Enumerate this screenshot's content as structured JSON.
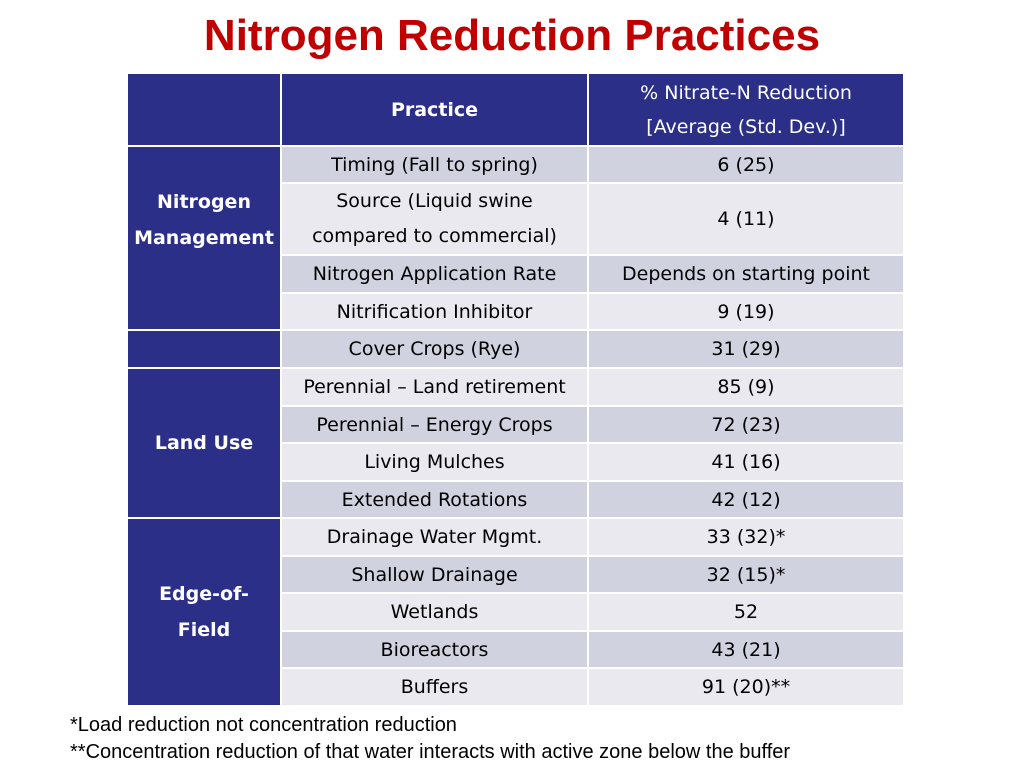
{
  "title": "Nitrogen Reduction Practices",
  "table": {
    "header": {
      "category": "",
      "practice": "Practice",
      "reduction_line1": "% Nitrate-N Reduction",
      "reduction_line2": "[Average (Std. Dev.)]"
    },
    "categories": {
      "nitrogen_management": "Nitrogen Management",
      "land_use": "Land Use",
      "edge_of_field": "Edge-of-Field"
    },
    "rows": [
      {
        "practice": "Timing (Fall to spring)",
        "reduction": "6 (25)"
      },
      {
        "practice": "Source (Liquid swine compared to commercial)",
        "reduction": "4 (11)"
      },
      {
        "practice": "Nitrogen Application Rate",
        "reduction": "Depends on starting point"
      },
      {
        "practice": "Nitrification Inhibitor",
        "reduction": "9 (19)"
      },
      {
        "practice": "Cover Crops (Rye)",
        "reduction": "31 (29)"
      },
      {
        "practice": "Perennial – Land retirement",
        "reduction": "85 (9)"
      },
      {
        "practice": "Perennial – Energy Crops",
        "reduction": "72 (23)"
      },
      {
        "practice": "Living Mulches",
        "reduction": "41 (16)"
      },
      {
        "practice": "Extended Rotations",
        "reduction": "42 (12)"
      },
      {
        "practice": "Drainage Water Mgmt.",
        "reduction": "33 (32)*"
      },
      {
        "practice": "Shallow Drainage",
        "reduction": "32 (15)*"
      },
      {
        "practice": "Wetlands",
        "reduction": "52"
      },
      {
        "practice": "Bioreactors",
        "reduction": "43 (21)"
      },
      {
        "practice": "Buffers",
        "reduction": "91 (20)**"
      }
    ]
  },
  "notes": [
    "*Load reduction not concentration reduction",
    "**Concentration reduction of that water interacts with active zone below the buffer"
  ]
}
